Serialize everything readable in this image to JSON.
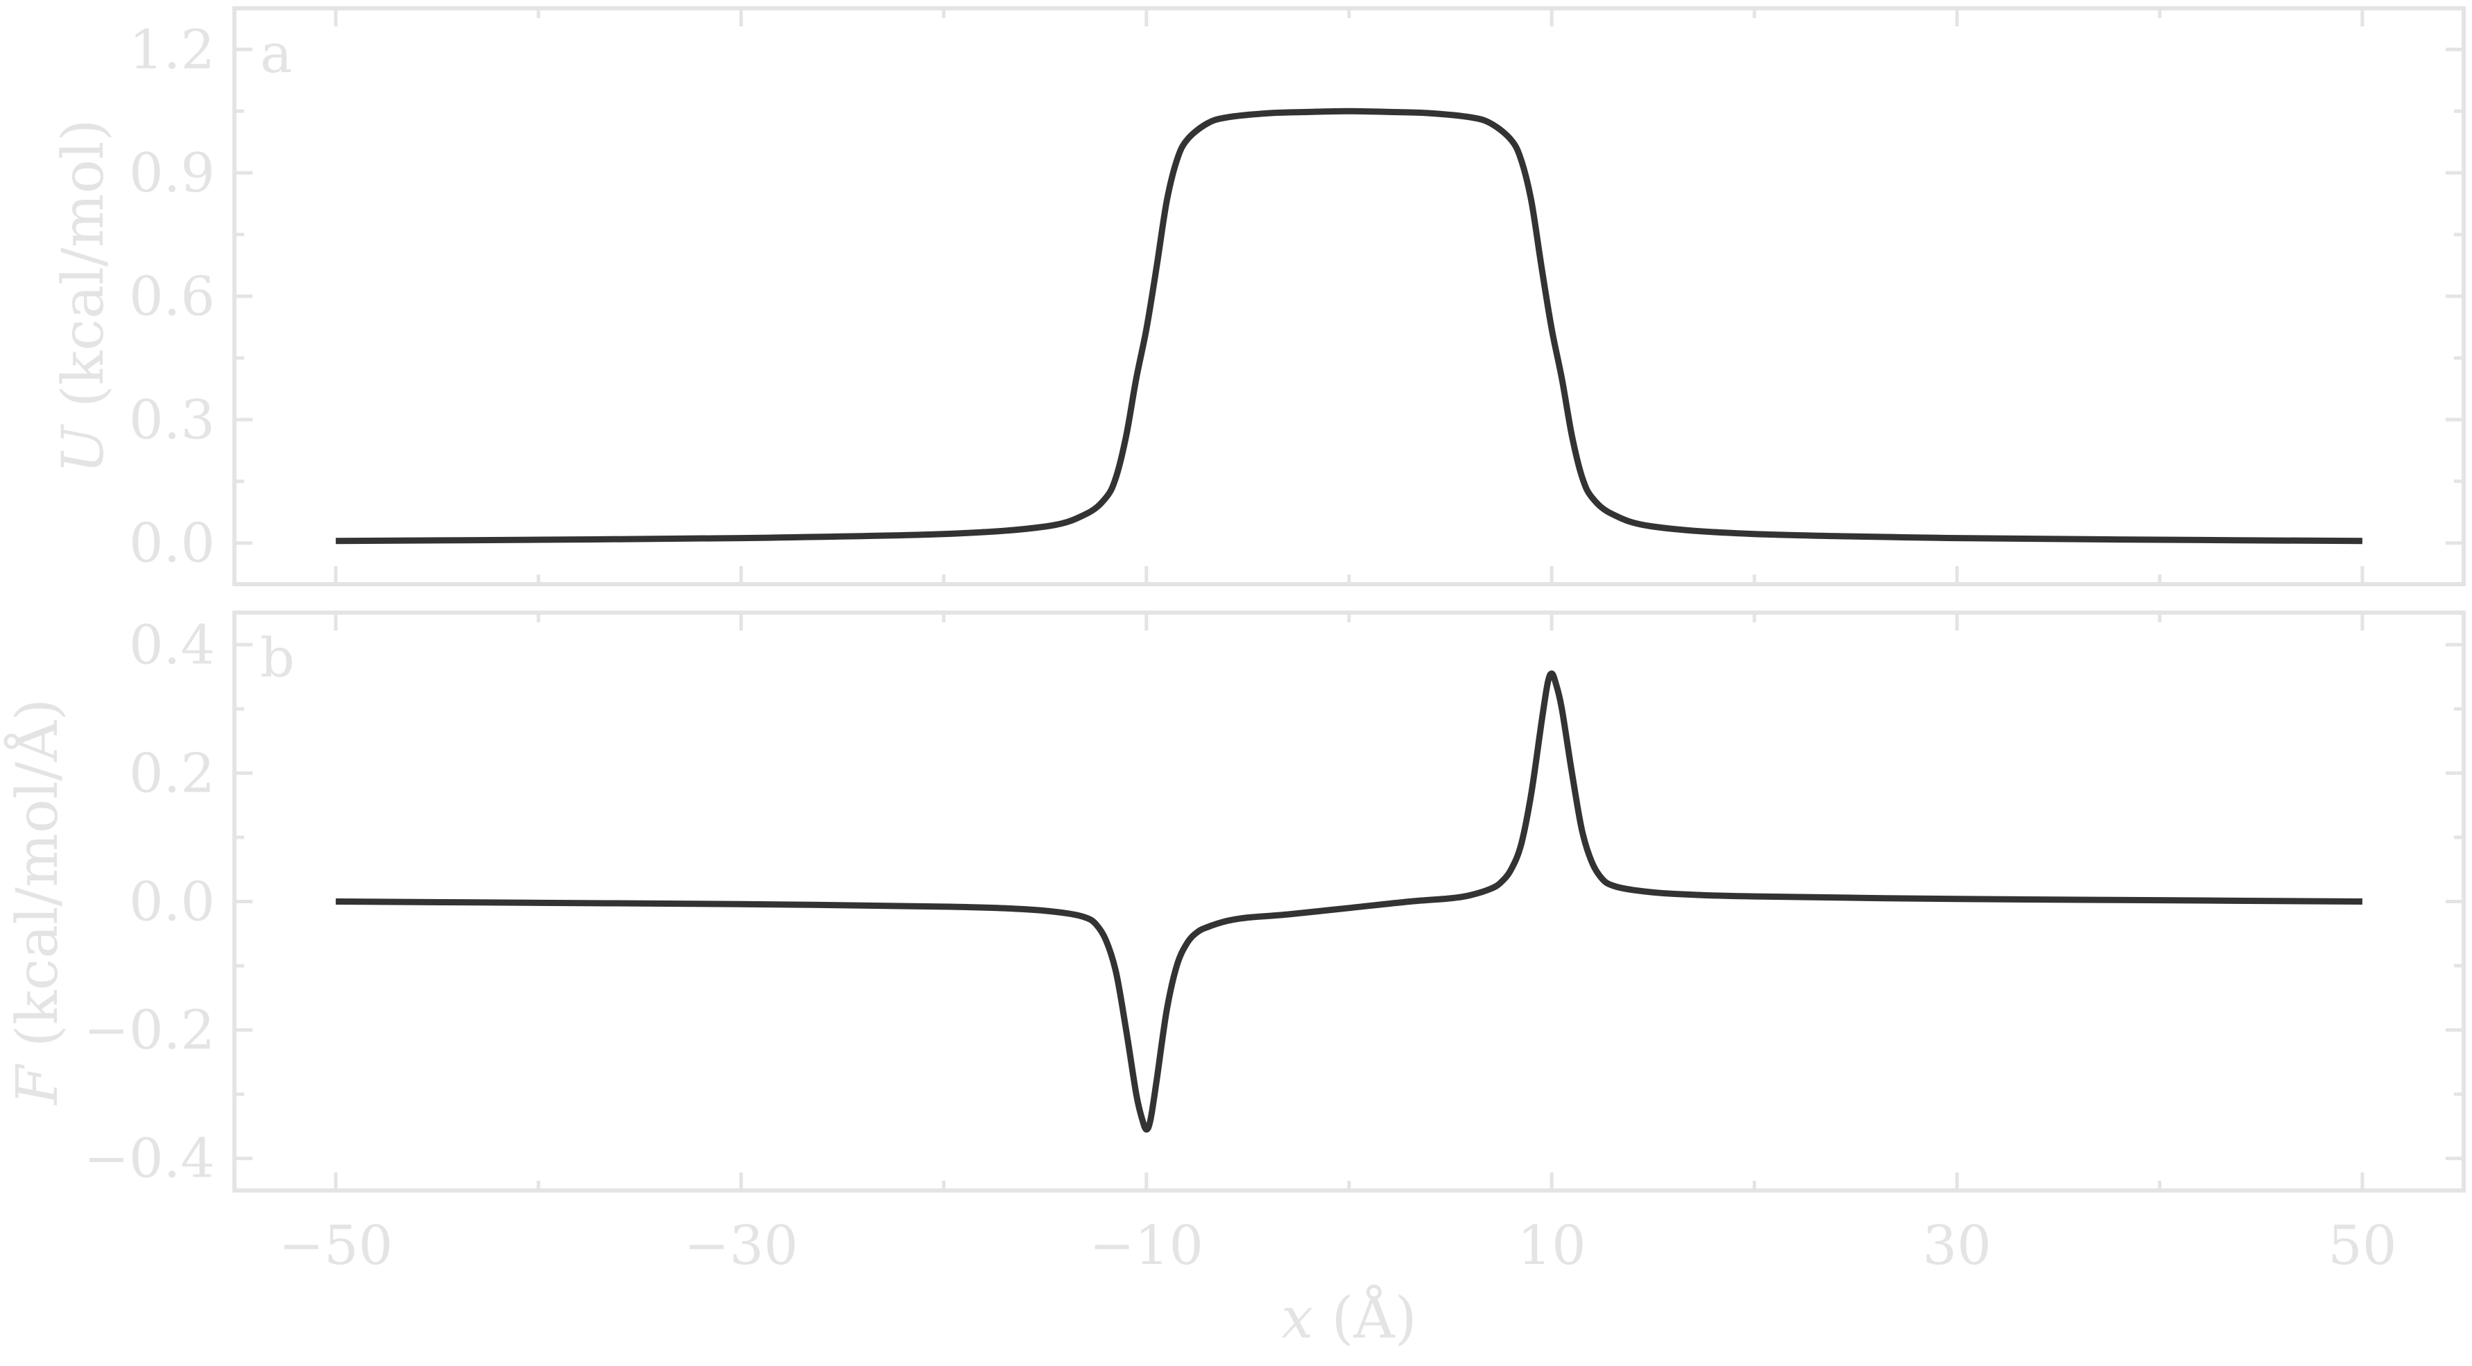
{
  "chart_data": [
    {
      "type": "line",
      "panel_label": "a",
      "ylabel_symbol": "U",
      "ylabel_units": "(kcal/mol)",
      "xlim": [
        -55,
        55
      ],
      "ylim": [
        -0.1,
        1.3
      ],
      "xticks": [
        -50,
        -30,
        -10,
        10,
        30,
        50
      ],
      "xtick_labels": [
        "−50",
        "−30",
        "−10",
        "10",
        "30",
        "50"
      ],
      "xminor": [
        -40,
        -20,
        0,
        20,
        40
      ],
      "yticks": [
        0.0,
        0.3,
        0.6,
        0.9,
        1.2
      ],
      "ytick_labels": [
        "0.0",
        "0.3",
        "0.6",
        "0.9",
        "1.2"
      ],
      "yminor": [
        0.15,
        0.45,
        0.75,
        1.05
      ],
      "grid": false,
      "series": [
        {
          "color": "#333333",
          "x": [
            -50,
            -40,
            -30,
            -20,
            -15,
            -13,
            -12,
            -11.5,
            -11,
            -10.5,
            -10,
            -9.5,
            -9,
            -8.5,
            -8,
            -7,
            -6,
            -4,
            -2,
            0,
            2,
            4,
            6,
            7,
            8,
            8.5,
            9,
            9.5,
            10,
            10.5,
            11,
            11.5,
            12,
            13,
            15,
            20,
            30,
            40,
            50
          ],
          "y": [
            0.005,
            0.008,
            0.012,
            0.022,
            0.04,
            0.07,
            0.11,
            0.16,
            0.26,
            0.4,
            0.52,
            0.67,
            0.83,
            0.93,
            0.98,
            1.02,
            1.035,
            1.045,
            1.048,
            1.05,
            1.048,
            1.045,
            1.035,
            1.02,
            0.98,
            0.93,
            0.83,
            0.67,
            0.52,
            0.4,
            0.26,
            0.16,
            0.11,
            0.07,
            0.04,
            0.022,
            0.012,
            0.008,
            0.005
          ]
        }
      ]
    },
    {
      "type": "line",
      "panel_label": "b",
      "xlabel_symbol": "x",
      "xlabel_units": "(Å)",
      "ylabel_symbol": "F",
      "ylabel_units": "(kcal/mol/Å)",
      "xlim": [
        -55,
        55
      ],
      "ylim": [
        -0.45,
        0.45
      ],
      "xticks": [
        -50,
        -30,
        -10,
        10,
        30,
        50
      ],
      "xtick_labels": [
        "−50",
        "−30",
        "−10",
        "10",
        "30",
        "50"
      ],
      "xminor": [
        -40,
        -20,
        0,
        20,
        40
      ],
      "yticks": [
        -0.4,
        -0.2,
        0.0,
        0.2,
        0.4
      ],
      "ytick_labels": [
        "−0.4",
        "−0.2",
        "0.0",
        "0.2",
        "0.4"
      ],
      "yminor": [
        -0.3,
        -0.1,
        0.1,
        0.3
      ],
      "grid": false,
      "series": [
        {
          "color": "#333333",
          "x": [
            -50,
            -40,
            -30,
            -20,
            -16,
            -14,
            -13,
            -12.5,
            -12,
            -11.5,
            -11,
            -10.5,
            -10.2,
            -10,
            -9.8,
            -9.5,
            -9,
            -8.5,
            -8,
            -7.5,
            -7,
            -6,
            -5,
            -3,
            0,
            3,
            5,
            6,
            7,
            7.5,
            8,
            8.5,
            9,
            9.5,
            9.8,
            10,
            10.2,
            10.5,
            11,
            11.5,
            12,
            12.5,
            13,
            14,
            16,
            20,
            30,
            40,
            50
          ],
          "y": [
            0,
            -0.002,
            -0.004,
            -0.008,
            -0.012,
            -0.018,
            -0.025,
            -0.035,
            -0.06,
            -0.11,
            -0.2,
            -0.3,
            -0.34,
            -0.355,
            -0.34,
            -0.28,
            -0.17,
            -0.1,
            -0.065,
            -0.048,
            -0.04,
            -0.03,
            -0.025,
            -0.02,
            -0.01,
            0.0,
            0.005,
            0.01,
            0.02,
            0.03,
            0.05,
            0.09,
            0.17,
            0.28,
            0.34,
            0.355,
            0.34,
            0.3,
            0.2,
            0.11,
            0.06,
            0.035,
            0.025,
            0.018,
            0.012,
            0.008,
            0.004,
            0.002,
            0
          ]
        }
      ]
    }
  ]
}
